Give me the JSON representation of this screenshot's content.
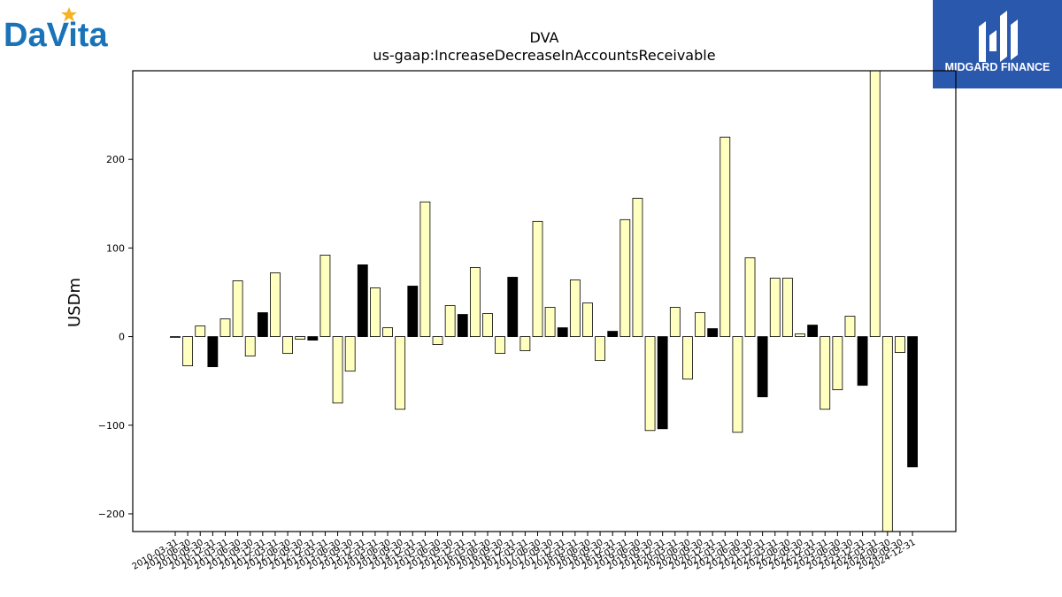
{
  "branding": {
    "company_logo_text": "DaVita",
    "sponsor_logo_text": "MIDGARD FINANCE",
    "sponsor_bg_color": "#2a58ad",
    "company_logo_color": "#1a73b8",
    "company_logo_star_color": "#f5b324"
  },
  "chart_data": {
    "type": "bar",
    "title": "DVA",
    "subtitle": "us-gaap:IncreaseDecreaseInAccountsReceivable",
    "xlabel": "",
    "ylabel": "USDm",
    "ylim": [
      -220,
      300
    ],
    "yticks": [
      -200,
      -100,
      0,
      100,
      200
    ],
    "grid": false,
    "colors": {
      "default": "#ffffc0",
      "highlight": "#000000",
      "edge": "#000000"
    },
    "categories": [
      "2010-03-31",
      "2010-06-30",
      "2010-09-30",
      "2010-12-31",
      "2011-03-31",
      "2011-06-30",
      "2011-09-30",
      "2011-12-31",
      "2012-03-31",
      "2012-06-30",
      "2012-09-30",
      "2012-12-31",
      "2013-03-31",
      "2013-06-30",
      "2013-09-30",
      "2013-12-31",
      "2014-03-31",
      "2014-06-30",
      "2014-09-30",
      "2014-12-31",
      "2015-03-31",
      "2015-06-30",
      "2015-09-30",
      "2015-12-31",
      "2016-03-31",
      "2016-06-30",
      "2016-09-30",
      "2016-12-31",
      "2017-03-31",
      "2017-06-30",
      "2017-09-30",
      "2017-12-31",
      "2018-03-31",
      "2018-06-30",
      "2018-09-30",
      "2018-12-31",
      "2019-03-31",
      "2019-06-30",
      "2019-09-30",
      "2019-12-31",
      "2020-03-31",
      "2020-06-30",
      "2020-09-30",
      "2020-12-31",
      "2021-03-31",
      "2021-06-30",
      "2021-09-30",
      "2021-12-31",
      "2022-03-31",
      "2022-06-30",
      "2022-09-30",
      "2022-12-31",
      "2023-03-31",
      "2023-06-30",
      "2023-09-30",
      "2023-12-31",
      "2024-03-31",
      "2024-06-30",
      "2024-09-30",
      "2024-12-31"
    ],
    "values": [
      -1,
      -33,
      12,
      -34,
      20,
      63,
      -22,
      27,
      72,
      -19,
      -3,
      -4,
      92,
      -75,
      -39,
      81,
      55,
      10,
      -82,
      57,
      152,
      -9,
      35,
      25,
      78,
      26,
      -19,
      67,
      -16,
      130,
      33,
      10,
      64,
      38,
      -27,
      6,
      132,
      156,
      -106,
      -104,
      33,
      -48,
      27,
      9,
      225,
      -108,
      89,
      -68,
      66,
      66,
      3,
      13,
      -82,
      -60,
      23,
      -55,
      300,
      -220,
      -18,
      -147
    ],
    "highlighted": [
      false,
      false,
      false,
      true,
      false,
      false,
      false,
      true,
      false,
      false,
      false,
      true,
      false,
      false,
      false,
      true,
      false,
      false,
      false,
      true,
      false,
      false,
      false,
      true,
      false,
      false,
      false,
      true,
      false,
      false,
      false,
      true,
      false,
      false,
      false,
      true,
      false,
      false,
      false,
      true,
      false,
      false,
      false,
      true,
      false,
      false,
      false,
      true,
      false,
      false,
      false,
      true,
      false,
      false,
      false,
      true,
      false,
      false,
      false,
      true
    ]
  }
}
